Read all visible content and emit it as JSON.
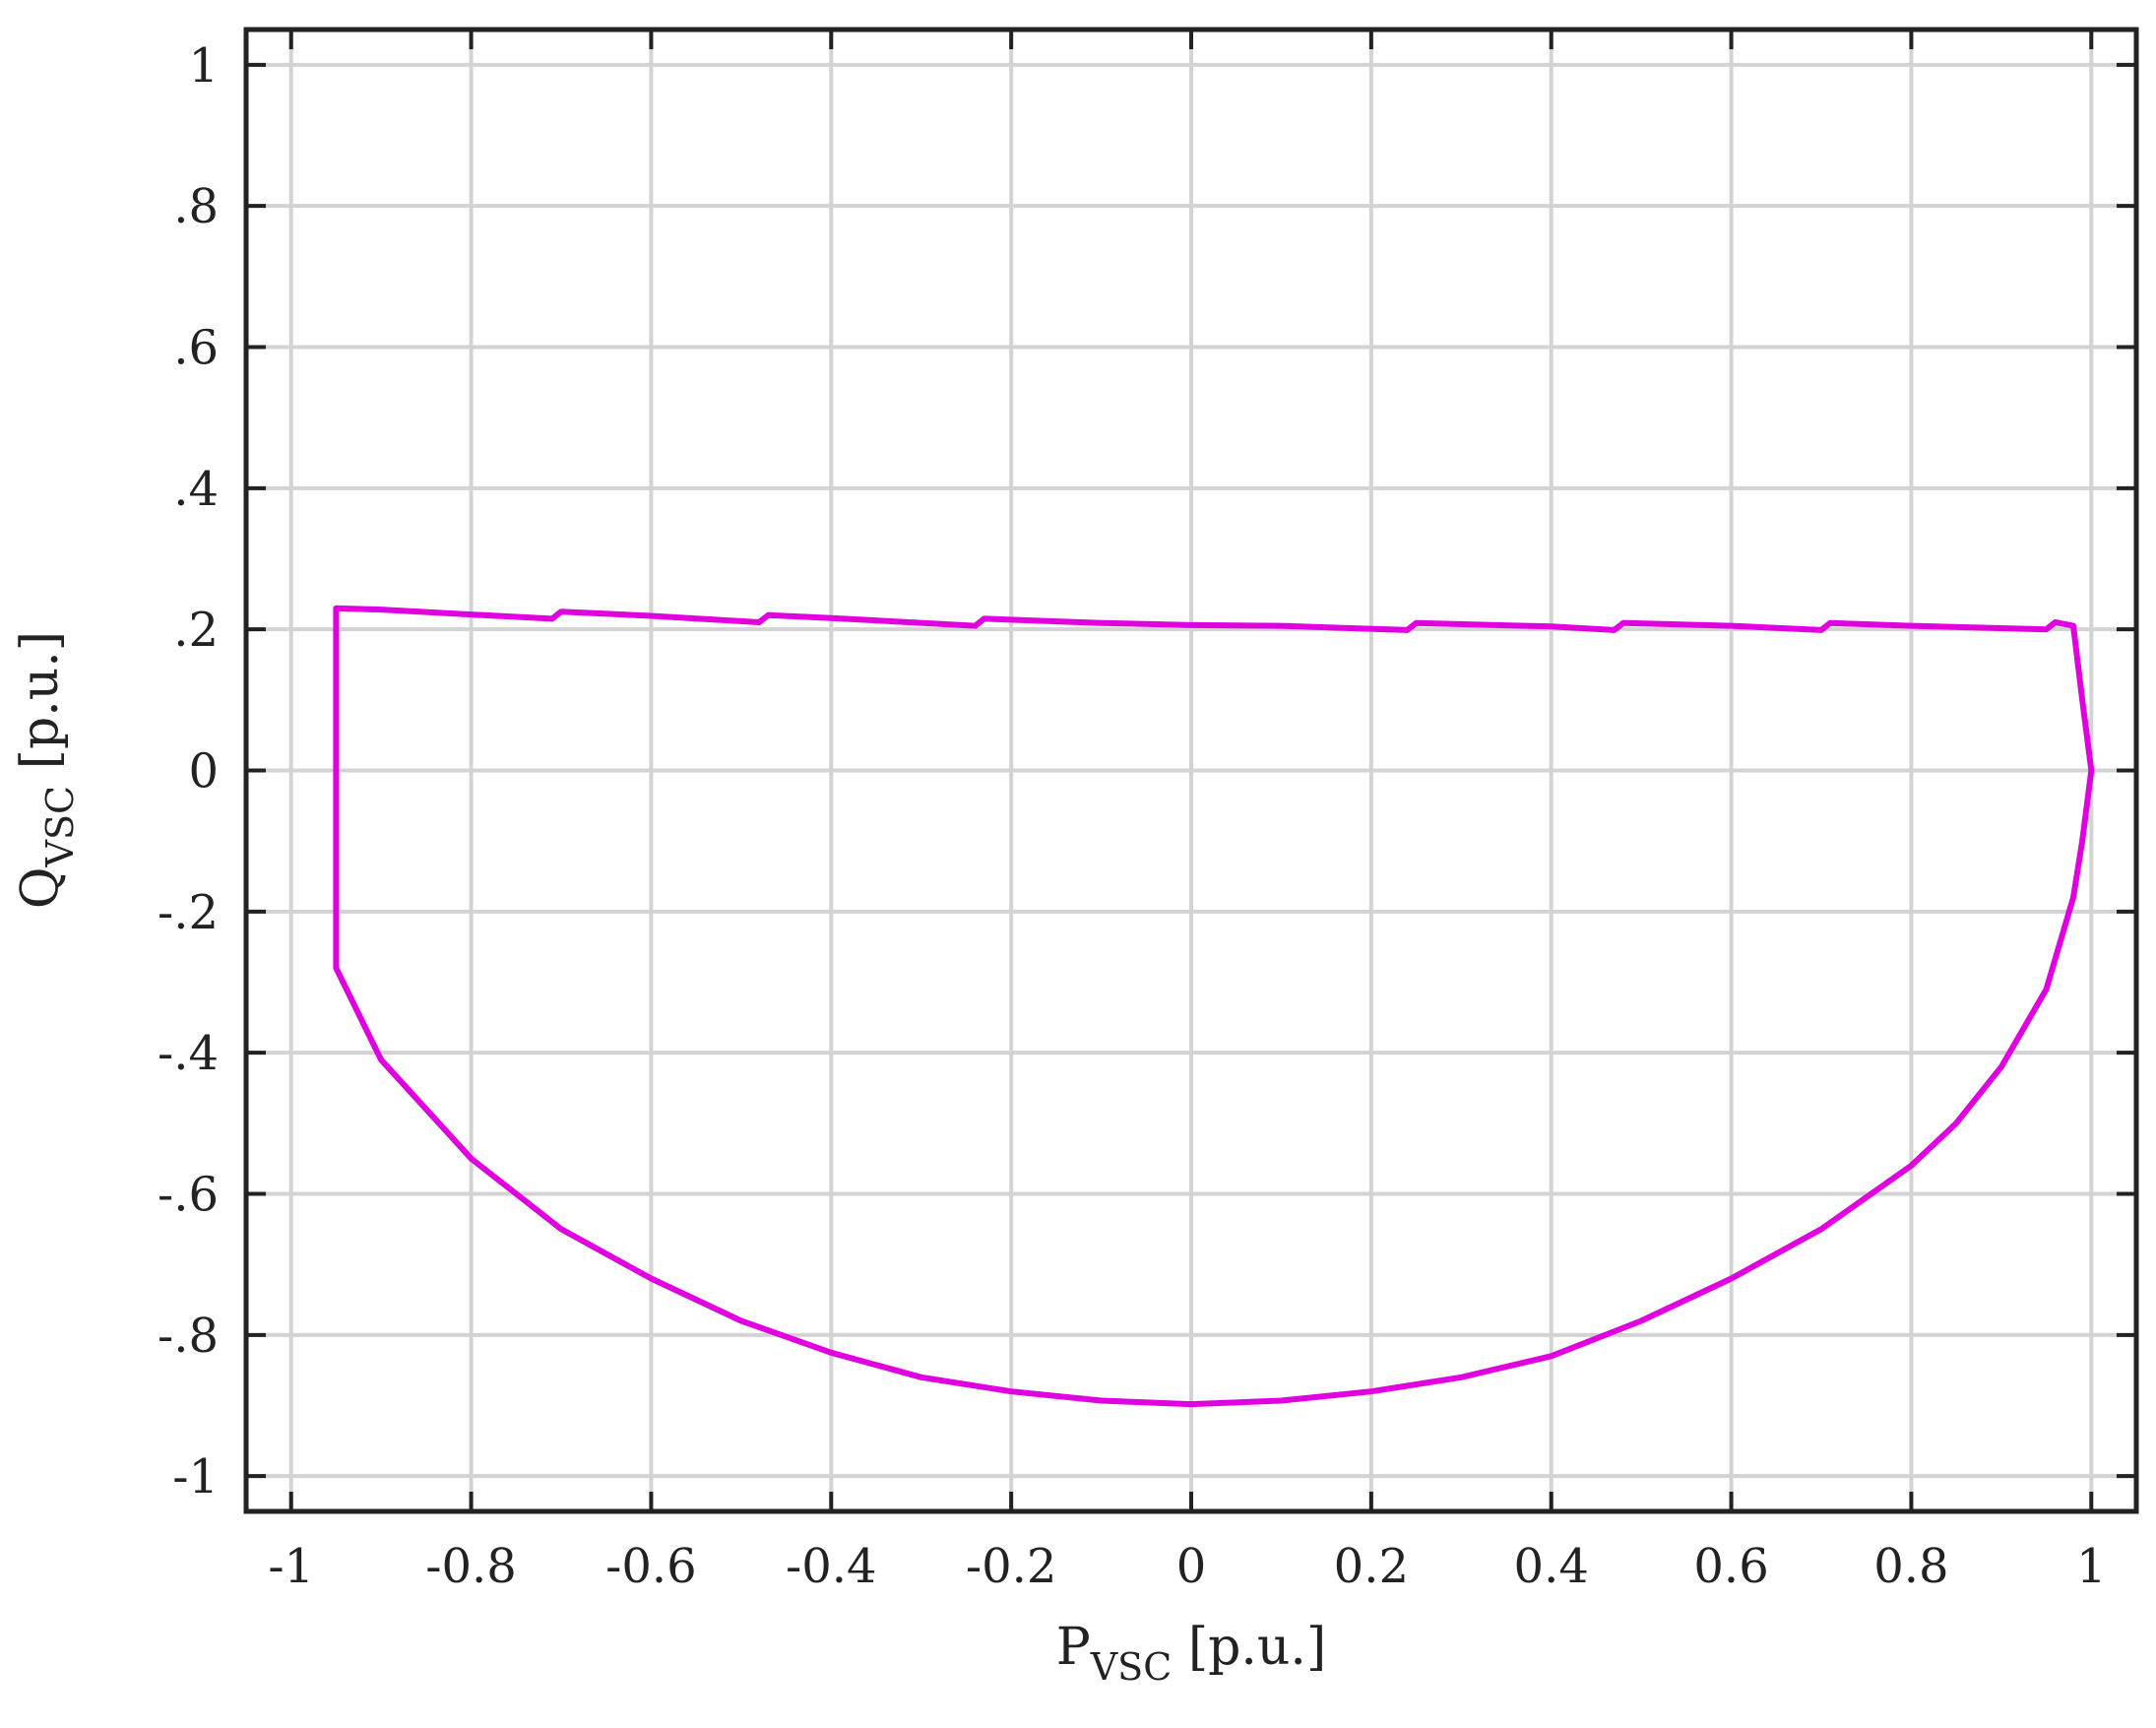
{
  "chart_data": {
    "type": "line",
    "title": "",
    "xlabel": {
      "main": "P",
      "sub": "VSC",
      "unit": " [p.u.]"
    },
    "ylabel": {
      "main": "Q",
      "sub": "VSC",
      "unit": " [p.u.]"
    },
    "xlim": [
      -1.05,
      1.05
    ],
    "ylim": [
      -1.05,
      1.05
    ],
    "xticks": [
      -1,
      -0.8,
      -0.6,
      -0.4,
      -0.2,
      0,
      0.2,
      0.4,
      0.6,
      0.8,
      1
    ],
    "yticks": [
      -1,
      -0.8,
      -0.6,
      -0.4,
      -0.2,
      0,
      0.2,
      0.4,
      0.6,
      0.8,
      1
    ],
    "grid": true,
    "legend": "none",
    "series": [
      {
        "color": "#e000e0",
        "x": [
          -0.95,
          -0.9,
          -0.8,
          -0.71,
          -0.7,
          -0.6,
          -0.48,
          -0.47,
          -0.4,
          -0.24,
          -0.23,
          -0.1,
          0.0,
          0.1,
          0.24,
          0.25,
          0.4,
          0.47,
          0.48,
          0.6,
          0.7,
          0.71,
          0.8,
          0.95,
          0.96,
          0.98,
          0.99,
          1.0,
          0.99,
          0.98,
          0.95,
          0.9,
          0.85,
          0.8,
          0.7,
          0.6,
          0.5,
          0.4,
          0.3,
          0.2,
          0.1,
          0.0,
          -0.1,
          -0.2,
          -0.3,
          -0.4,
          -0.5,
          -0.6,
          -0.7,
          -0.8,
          -0.9,
          -0.95,
          -0.95,
          -0.95
        ],
        "y": [
          0.23,
          0.228,
          0.221,
          0.215,
          0.225,
          0.219,
          0.21,
          0.22,
          0.216,
          0.205,
          0.215,
          0.209,
          0.206,
          0.205,
          0.199,
          0.209,
          0.204,
          0.199,
          0.209,
          0.205,
          0.199,
          0.209,
          0.205,
          0.2,
          0.21,
          0.205,
          0.1,
          0.0,
          -0.1,
          -0.18,
          -0.31,
          -0.42,
          -0.5,
          -0.56,
          -0.65,
          -0.72,
          -0.78,
          -0.83,
          -0.86,
          -0.88,
          -0.893,
          -0.898,
          -0.893,
          -0.88,
          -0.86,
          -0.825,
          -0.78,
          -0.72,
          -0.65,
          -0.55,
          -0.41,
          -0.28,
          0.0,
          0.23
        ]
      }
    ]
  }
}
